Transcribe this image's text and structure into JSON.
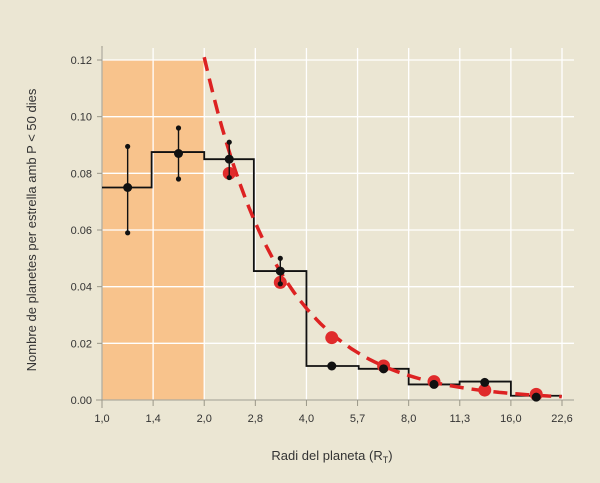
{
  "chart_data": {
    "type": "line",
    "xlabel": "Radi del planeta (R",
    "xlabel_sub": "T",
    "xlabel_close": ")",
    "ylabel": "Nombre de planetes per estrella amb P < 50 dies",
    "x_ticks": [
      "1,0",
      "1,4",
      "2,0",
      "2,8",
      "4,0",
      "5,7",
      "8,0",
      "11,3",
      "16,0",
      "22,6"
    ],
    "y_ticks": [
      "0.00",
      "0.02",
      "0.04",
      "0.06",
      "0.08",
      "0.10",
      "0.12"
    ],
    "ylim": [
      0,
      0.12
    ],
    "grid": true,
    "shaded_region": {
      "x_from": "1,0",
      "x_to": "2,0"
    },
    "histogram": [
      {
        "bin": [
          "1,0",
          "1,4"
        ],
        "value": 0.075
      },
      {
        "bin": [
          "1,4",
          "2,0"
        ],
        "value": 0.0875
      },
      {
        "bin": [
          "2,0",
          "2,8"
        ],
        "value": 0.085
      },
      {
        "bin": [
          "2,8",
          "4,0"
        ],
        "value": 0.0455
      },
      {
        "bin": [
          "4,0",
          "5,7"
        ],
        "value": 0.012
      },
      {
        "bin": [
          "5,7",
          "8,0"
        ],
        "value": 0.011
      },
      {
        "bin": [
          "8,0",
          "11,3"
        ],
        "value": 0.0055
      },
      {
        "bin": [
          "11,3",
          "16,0"
        ],
        "value": 0.0065
      },
      {
        "bin": [
          "16,0",
          "22,6"
        ],
        "value": 0.0015
      }
    ],
    "measured_points": [
      {
        "x": 1.19,
        "y": 0.075,
        "err_low": 0.059,
        "err_high": 0.0895
      },
      {
        "x": 1.68,
        "y": 0.087,
        "err_low": 0.078,
        "err_high": 0.096
      },
      {
        "x": 2.37,
        "y": 0.085,
        "err_low": 0.0785,
        "err_high": 0.091
      },
      {
        "x": 3.35,
        "y": 0.0455,
        "err_low": 0.041,
        "err_high": 0.05
      },
      {
        "x": 4.75,
        "y": 0.012
      },
      {
        "x": 6.75,
        "y": 0.011
      },
      {
        "x": 9.5,
        "y": 0.0055
      },
      {
        "x": 13.4,
        "y": 0.0062
      },
      {
        "x": 19.0,
        "y": 0.001
      }
    ],
    "model_points": [
      {
        "x": 2.37,
        "y": 0.08
      },
      {
        "x": 3.35,
        "y": 0.0415
      },
      {
        "x": 4.75,
        "y": 0.022
      },
      {
        "x": 6.75,
        "y": 0.012
      },
      {
        "x": 9.5,
        "y": 0.0065
      },
      {
        "x": 13.4,
        "y": 0.0035
      },
      {
        "x": 19.0,
        "y": 0.002
      }
    ],
    "fit_curve": {
      "x_from": 2.0,
      "x_to": 22.6,
      "y_at_x2": 0.121,
      "y_at_x22_6": 0.0012
    },
    "colors": {
      "background": "#ebe6d3",
      "shaded": "#f8c38c",
      "grid": "#ffffff",
      "histogram": "#111111",
      "measured": "#111111",
      "model": "#e02b2b",
      "fit": "#dd2222"
    }
  }
}
